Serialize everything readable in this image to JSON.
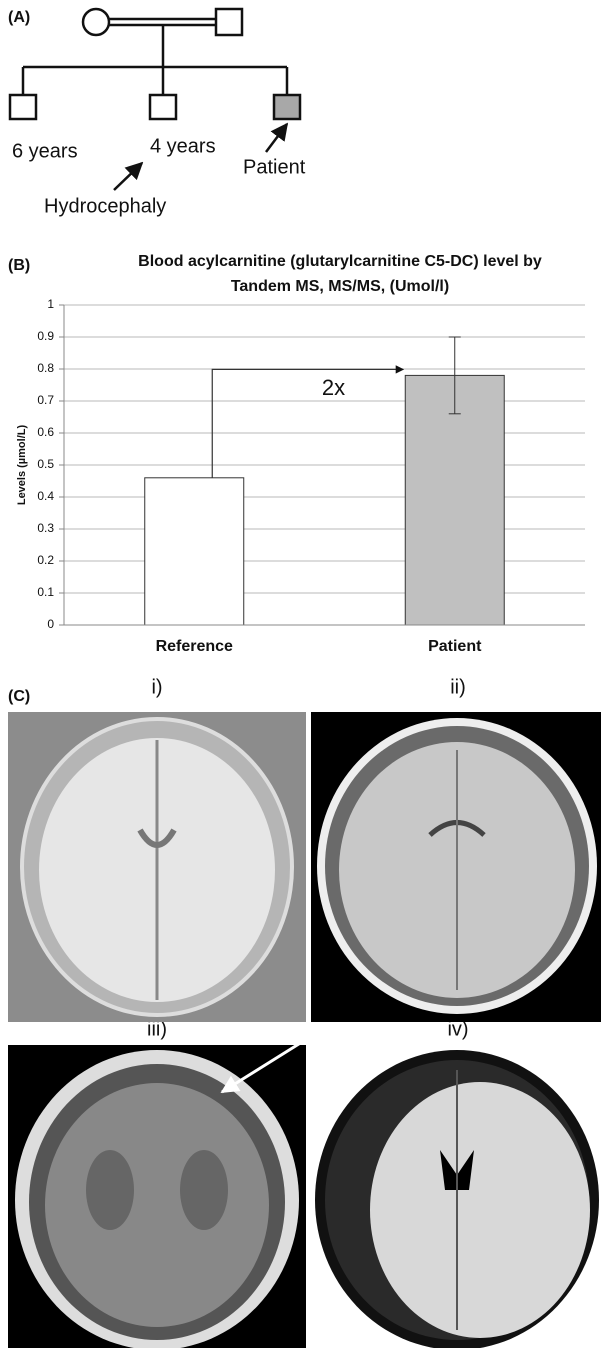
{
  "panel_a": {
    "label": "(A)",
    "ages": [
      "6 years",
      "4 years"
    ],
    "patient": "Patient",
    "note": "Hydrocephaly"
  },
  "chart_data": {
    "type": "bar",
    "panel_label": "(B)",
    "title": [
      "Blood acylcarnitine (glutarylcarnitine C5-DC) level by",
      "Tandem MS, MS/MS, (Umol/l)"
    ],
    "y_label": "Levels (µmol/L)",
    "categories": [
      "Reference",
      "Patient"
    ],
    "values": [
      0.46,
      0.78
    ],
    "errors": [
      null,
      0.12
    ],
    "colors": [
      "#ffffff",
      "#c0c0c0"
    ],
    "ylim": [
      0,
      1
    ],
    "yticks": [
      0,
      0.1,
      0.2,
      0.3,
      0.4,
      0.5,
      0.6,
      0.7,
      0.8,
      0.9,
      1
    ],
    "grid": true,
    "annotation": "2x"
  },
  "panel_c": {
    "label": "(C)",
    "images": [
      "i)",
      "ii)",
      "iii)",
      "iv)"
    ]
  }
}
